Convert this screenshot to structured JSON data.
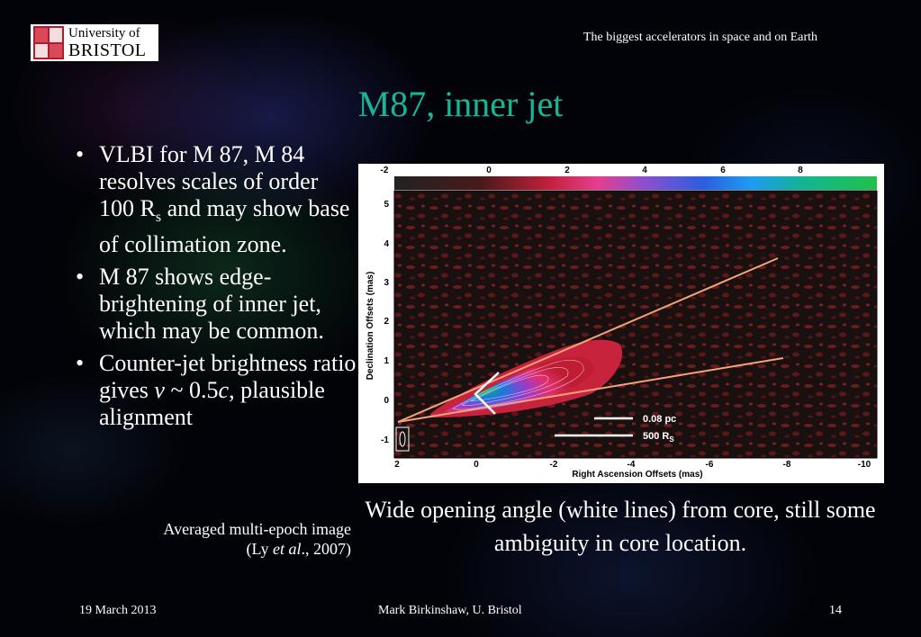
{
  "header": {
    "logo_text_line1": "University of",
    "logo_text_line2": "BRISTOL",
    "talk_title": "The biggest accelerators in space and on Earth"
  },
  "slide": {
    "title": "M87, inner jet",
    "bullets": [
      {
        "parts": [
          {
            "text": "VLBI for M 87, M 84 resolves scales of order 100 R",
            "style": "normal"
          },
          {
            "text": "s",
            "style": "sub"
          },
          {
            "text": " and may show base of collimation zone.",
            "style": "normal"
          }
        ]
      },
      {
        "parts": [
          {
            "text": "M 87 shows edge-brightening of inner jet, which may be common.",
            "style": "normal"
          }
        ]
      },
      {
        "parts": [
          {
            "text": "Counter-jet brightness ratio gives ",
            "style": "normal"
          },
          {
            "text": "v",
            "style": "italic"
          },
          {
            "text": " ~ 0.5",
            "style": "normal"
          },
          {
            "text": "c",
            "style": "italic"
          },
          {
            "text": ", plausible alignment",
            "style": "normal"
          }
        ]
      }
    ],
    "image_caption": {
      "line1": "Averaged multi-epoch image",
      "line2_prefix": "(Ly ",
      "line2_italic": "et al",
      "line2_suffix": "., 2007)"
    },
    "figure_caption": "Wide opening angle (white lines) from core, still some ambiguity in core location.",
    "figure": {
      "colorbar_ticks": [
        "-2",
        "0",
        "2",
        "4",
        "6",
        "8"
      ],
      "y_ticks": [
        "5",
        "4",
        "3",
        "2",
        "1",
        "0",
        "-1"
      ],
      "x_ticks": [
        "2",
        "0",
        "-2",
        "-4",
        "-6",
        "-8",
        "-10"
      ],
      "ylabel": "Declination Offsets (mas)",
      "xlabel": "Right Ascension Offsets (mas)",
      "scalebar_pc": "0.08 pc",
      "scalebar_rs": "500 R",
      "scalebar_rs_sub": "S"
    }
  },
  "footer": {
    "date": "19 March 2013",
    "author": "Mark Birkinshaw, U. Bristol",
    "page": "14"
  }
}
